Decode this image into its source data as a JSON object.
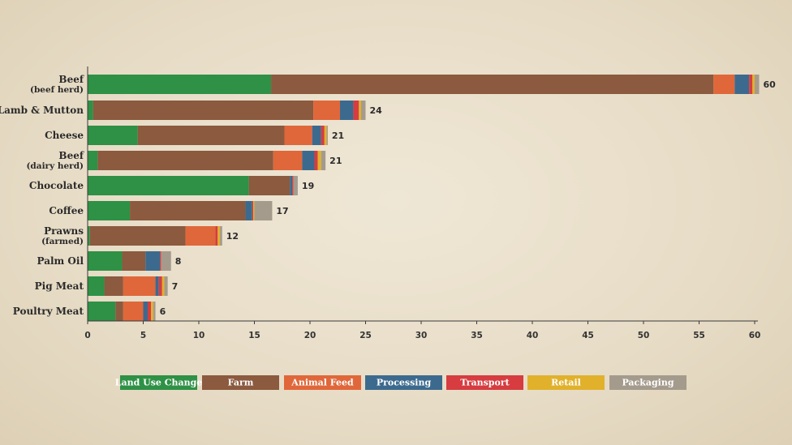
{
  "chart_data": {
    "type": "bar",
    "orientation": "horizontal",
    "stacked": true,
    "title": "",
    "xlabel": "",
    "ylabel": "",
    "xlim": [
      0,
      60
    ],
    "x_ticks": [
      0,
      5,
      10,
      15,
      20,
      25,
      30,
      35,
      40,
      45,
      50,
      55,
      60
    ],
    "grid": false,
    "legend_position": "bottom",
    "categories": [
      {
        "name": "Beef",
        "sub": "(beef herd)",
        "total": "60"
      },
      {
        "name": "Lamb & Mutton",
        "sub": "",
        "total": "24"
      },
      {
        "name": "Cheese",
        "sub": "",
        "total": "21"
      },
      {
        "name": "Beef",
        "sub": "(dairy herd)",
        "total": "21"
      },
      {
        "name": "Chocolate",
        "sub": "",
        "total": "19"
      },
      {
        "name": "Coffee",
        "sub": "",
        "total": "17"
      },
      {
        "name": "Prawns",
        "sub": "(farmed)",
        "total": "12"
      },
      {
        "name": "Palm Oil",
        "sub": "",
        "total": "8"
      },
      {
        "name": "Pig Meat",
        "sub": "",
        "total": "7"
      },
      {
        "name": "Poultry Meat",
        "sub": "",
        "total": "6"
      }
    ],
    "series": [
      {
        "name": "Land Use Change",
        "color": "#2e9145",
        "values": [
          16.5,
          0.5,
          4.5,
          0.9,
          14.5,
          3.8,
          0.2,
          3.1,
          1.5,
          2.5
        ]
      },
      {
        "name": "Farm",
        "color": "#8b5a3f",
        "values": [
          39.8,
          19.8,
          13.2,
          15.8,
          3.7,
          10.4,
          8.6,
          2.1,
          1.7,
          0.7
        ]
      },
      {
        "name": "Animal Feed",
        "color": "#e0673a",
        "values": [
          1.9,
          2.4,
          2.5,
          2.6,
          0.0,
          0.0,
          2.7,
          0.0,
          2.9,
          1.8
        ]
      },
      {
        "name": "Processing",
        "color": "#3c6a8e",
        "values": [
          1.3,
          1.2,
          0.8,
          1.1,
          0.2,
          0.6,
          0.0,
          1.3,
          0.3,
          0.4
        ]
      },
      {
        "name": "Transport",
        "color": "#d63c40",
        "values": [
          0.3,
          0.5,
          0.3,
          0.3,
          0.1,
          0.1,
          0.2,
          0.1,
          0.3,
          0.3
        ]
      },
      {
        "name": "Retail",
        "color": "#e1b12c",
        "values": [
          0.2,
          0.2,
          0.2,
          0.3,
          0.0,
          0.1,
          0.2,
          0.0,
          0.2,
          0.2
        ]
      },
      {
        "name": "Packaging",
        "color": "#a49b8d",
        "values": [
          0.4,
          0.4,
          0.1,
          0.4,
          0.4,
          1.6,
          0.2,
          0.9,
          0.3,
          0.2
        ]
      }
    ]
  }
}
